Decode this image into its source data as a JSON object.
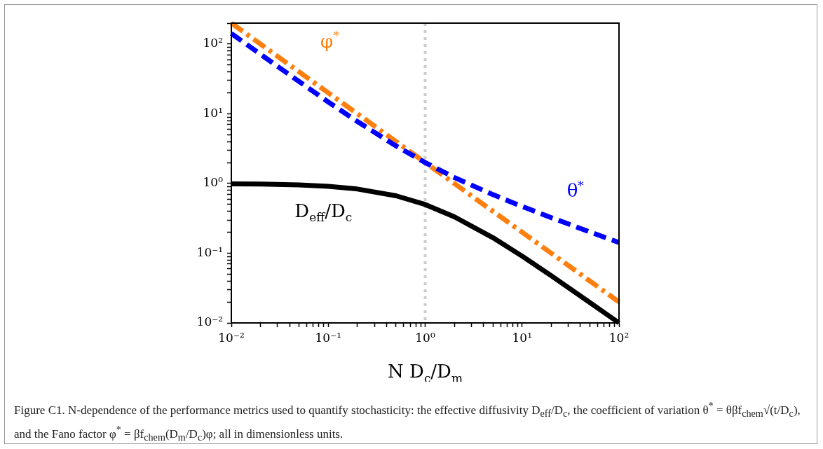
{
  "chart_data": {
    "type": "line",
    "xlabel": "N D$_{c}$/D$_{m}$",
    "x": [
      0.01,
      0.02,
      0.05,
      0.1,
      0.2,
      0.5,
      1,
      2,
      5,
      10,
      20,
      50,
      100
    ],
    "series": [
      {
        "name": "D$_{eff}$/D$_{c}$",
        "color": "#000000",
        "line_style": "solid",
        "values": [
          0.99,
          0.98,
          0.952,
          0.909,
          0.833,
          0.667,
          0.5,
          0.333,
          0.167,
          0.0909,
          0.0476,
          0.0196,
          0.01
        ]
      },
      {
        "name": "θ$^{*}$",
        "color": "#0000ff",
        "line_style": "dashed",
        "values": [
          142,
          71.4,
          29,
          14.8,
          7.75,
          3.46,
          2,
          1.22,
          0.693,
          0.469,
          0.324,
          0.202,
          0.142
        ]
      },
      {
        "name": "φ$^{*}$",
        "color": "#ff7f0e",
        "line_style": "dashdot",
        "values": [
          200,
          100,
          40,
          20,
          10,
          4,
          2,
          1,
          0.4,
          0.2,
          0.1,
          0.04,
          0.02
        ]
      }
    ],
    "log": "xy",
    "xlim": [
      0.01,
      100
    ],
    "ylim": [
      0.01,
      200
    ],
    "xticks": [
      {
        "value": 0.01,
        "label": "10⁻²"
      },
      {
        "value": 0.02,
        "label": null
      },
      {
        "value": 0.03,
        "label": null
      },
      {
        "value": 0.04,
        "label": null
      },
      {
        "value": 0.05,
        "label": null
      },
      {
        "value": 0.06,
        "label": null
      },
      {
        "value": 0.07,
        "label": null
      },
      {
        "value": 0.08,
        "label": null
      },
      {
        "value": 0.09,
        "label": null
      },
      {
        "value": 0.1,
        "label": "10⁻¹"
      },
      {
        "value": 0.2,
        "label": null
      },
      {
        "value": 0.3,
        "label": null
      },
      {
        "value": 0.4,
        "label": null
      },
      {
        "value": 0.5,
        "label": null
      },
      {
        "value": 0.6,
        "label": null
      },
      {
        "value": 0.7,
        "label": null
      },
      {
        "value": 0.8,
        "label": null
      },
      {
        "value": 0.9,
        "label": null
      },
      {
        "value": 1,
        "label": "10⁰"
      },
      {
        "value": 2,
        "label": null
      },
      {
        "value": 3,
        "label": null
      },
      {
        "value": 4,
        "label": null
      },
      {
        "value": 5,
        "label": null
      },
      {
        "value": 6,
        "label": null
      },
      {
        "value": 7,
        "label": null
      },
      {
        "value": 8,
        "label": null
      },
      {
        "value": 9,
        "label": null
      },
      {
        "value": 10,
        "label": "10¹"
      },
      {
        "value": 20,
        "label": null
      },
      {
        "value": 30,
        "label": null
      },
      {
        "value": 40,
        "label": null
      },
      {
        "value": 50,
        "label": null
      },
      {
        "value": 60,
        "label": null
      },
      {
        "value": 70,
        "label": null
      },
      {
        "value": 80,
        "label": null
      },
      {
        "value": 90,
        "label": null
      },
      {
        "value": 100,
        "label": "10²"
      }
    ],
    "yticks": [
      {
        "value": 0.01,
        "label": "10⁻²"
      },
      {
        "value": 0.02,
        "label": null
      },
      {
        "value": 0.03,
        "label": null
      },
      {
        "value": 0.04,
        "label": null
      },
      {
        "value": 0.05,
        "label": null
      },
      {
        "value": 0.06,
        "label": null
      },
      {
        "value": 0.07,
        "label": null
      },
      {
        "value": 0.08,
        "label": null
      },
      {
        "value": 0.09,
        "label": null
      },
      {
        "value": 0.1,
        "label": "10⁻¹"
      },
      {
        "value": 0.2,
        "label": null
      },
      {
        "value": 0.3,
        "label": null
      },
      {
        "value": 0.4,
        "label": null
      },
      {
        "value": 0.5,
        "label": null
      },
      {
        "value": 0.6,
        "label": null
      },
      {
        "value": 0.7,
        "label": null
      },
      {
        "value": 0.8,
        "label": null
      },
      {
        "value": 0.9,
        "label": null
      },
      {
        "value": 1,
        "label": "10⁰"
      },
      {
        "value": 2,
        "label": null
      },
      {
        "value": 3,
        "label": null
      },
      {
        "value": 4,
        "label": null
      },
      {
        "value": 5,
        "label": null
      },
      {
        "value": 6,
        "label": null
      },
      {
        "value": 7,
        "label": null
      },
      {
        "value": 8,
        "label": null
      },
      {
        "value": 9,
        "label": null
      },
      {
        "value": 10,
        "label": "10¹"
      },
      {
        "value": 20,
        "label": null
      },
      {
        "value": 30,
        "label": null
      },
      {
        "value": 40,
        "label": null
      },
      {
        "value": 50,
        "label": null
      },
      {
        "value": 60,
        "label": null
      },
      {
        "value": 70,
        "label": null
      },
      {
        "value": 80,
        "label": null
      },
      {
        "value": 90,
        "label": null
      },
      {
        "value": 100,
        "label": "10²"
      },
      {
        "value": 200,
        "label": null
      }
    ],
    "ref_lines": [
      {
        "axis": "x",
        "value": 1,
        "label": null,
        "color": "#cccccc",
        "line_style": "dotted"
      }
    ],
    "grid": false,
    "legend": false,
    "marker": "none",
    "annotations": [
      "Figure C1. N-dependence of the performance metrics used to quantify stochasticity: the effective diffusivity D$_{eff}$/D$_{c}$, the coefficient of variation θ$^{*}$ = θβf$_{chem}$√(t/D$_{c}$), and the Fano factor φ$^{*}$ = βf$_{chem}$(D$_{m}$/D$_{c}$)φ; all in dimensionless units."
    ]
  }
}
